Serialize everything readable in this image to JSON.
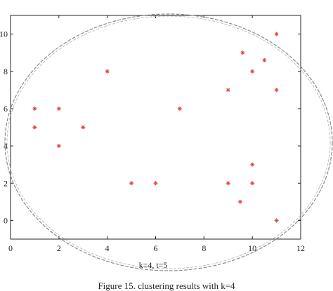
{
  "chart_data": {
    "type": "scatter",
    "title": "",
    "xlabel": "",
    "ylabel": "",
    "xlim": [
      0,
      12
    ],
    "ylim": [
      -1,
      11
    ],
    "xticks": [
      "0",
      "2",
      "4",
      "6",
      "8",
      "10",
      "12"
    ],
    "yticks": [
      "0",
      "2",
      "4",
      "6",
      "8",
      "10"
    ],
    "grid": false,
    "marker": "asterisk",
    "marker_color": "#e8423a",
    "points": [
      {
        "x": 1,
        "y": 6
      },
      {
        "x": 1,
        "y": 5
      },
      {
        "x": 2,
        "y": 6
      },
      {
        "x": 2,
        "y": 4
      },
      {
        "x": 3,
        "y": 5
      },
      {
        "x": 4,
        "y": 8
      },
      {
        "x": 5,
        "y": 2
      },
      {
        "x": 6,
        "y": 2
      },
      {
        "x": 7,
        "y": 6
      },
      {
        "x": 9,
        "y": 7
      },
      {
        "x": 9,
        "y": 2
      },
      {
        "x": 9.5,
        "y": 1
      },
      {
        "x": 9.6,
        "y": 9
      },
      {
        "x": 10,
        "y": 8
      },
      {
        "x": 10,
        "y": 3
      },
      {
        "x": 10,
        "y": 2
      },
      {
        "x": 10.5,
        "y": 8.6
      },
      {
        "x": 11,
        "y": 10
      },
      {
        "x": 11,
        "y": 7
      },
      {
        "x": 11,
        "y": 0
      }
    ],
    "annotation": "k=4, t=5",
    "cluster_outline_color": "#8a8a8a"
  },
  "caption": "Figure 15. clustering results with k=4"
}
